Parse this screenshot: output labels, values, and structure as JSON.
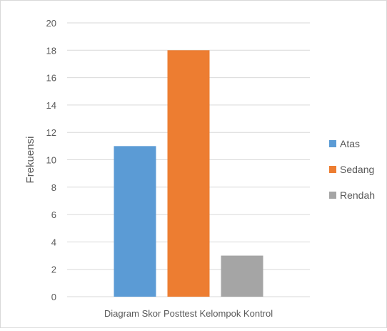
{
  "chart_data": {
    "type": "bar",
    "categories": [
      "Diagram Skor Posttest Kelompok Kontrol"
    ],
    "series": [
      {
        "name": "Atas",
        "values": [
          11
        ],
        "color": "#5B9BD5"
      },
      {
        "name": "Sedang",
        "values": [
          18
        ],
        "color": "#ED7D31"
      },
      {
        "name": "Rendah",
        "values": [
          3
        ],
        "color": "#A5A5A5"
      }
    ],
    "title": "",
    "xlabel": "",
    "ylabel": "Frekuensi",
    "ylim": [
      0,
      20
    ],
    "yticks": [
      0,
      2,
      4,
      6,
      8,
      10,
      12,
      14,
      16,
      18,
      20
    ],
    "grid": true,
    "legend_position": "right"
  },
  "colors": {
    "gridline": "#D9D9D9",
    "text": "#595959",
    "border": "#D9D9D9"
  }
}
